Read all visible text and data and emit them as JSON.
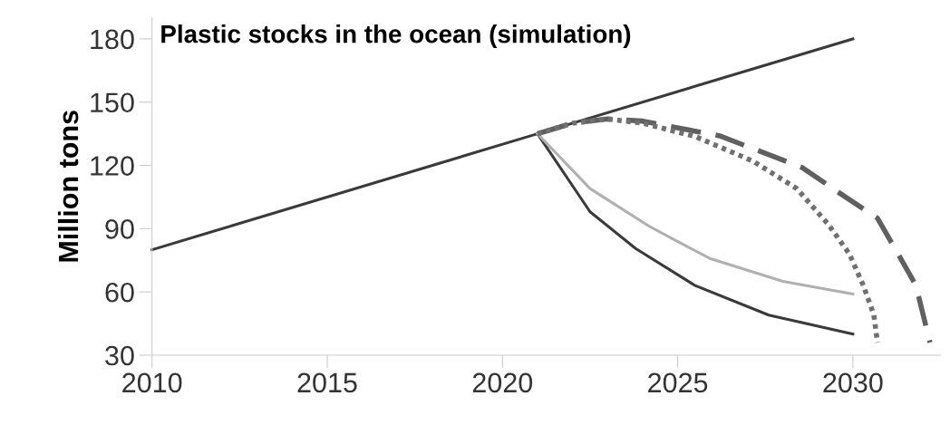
{
  "chart_data": {
    "type": "line",
    "title": "Plastic stocks in the ocean (simulation)",
    "ylabel": "Million tons",
    "xlim": [
      2010,
      2032.5
    ],
    "xticks": [
      2010,
      2015,
      2020,
      2025,
      2030
    ],
    "ylim": [
      30,
      190
    ],
    "yticks": [
      30,
      60,
      90,
      120,
      150,
      180
    ],
    "grid": false,
    "legend": false,
    "series": [
      {
        "color": "#3a3a3a",
        "line_style": "solid",
        "x": [
          2010,
          2021,
          2030
        ],
        "values": [
          80,
          135,
          180
        ]
      },
      {
        "color": "#3a3a3a",
        "line_style": "solid",
        "x": [
          2021,
          2022.5,
          2023.8,
          2025.5,
          2027.6,
          2030
        ],
        "values": [
          135,
          98,
          80.6,
          63,
          49,
          40
        ]
      },
      {
        "color": "#b0b0b0",
        "line_style": "solid",
        "x": [
          2021,
          2022.5,
          2024.2,
          2025.9,
          2028,
          2030
        ],
        "values": [
          135,
          109,
          91,
          76,
          65,
          59
        ]
      },
      {
        "color": "#606060",
        "line_style": "dashed",
        "x": [
          2021,
          2022,
          2023,
          2024,
          2026.2,
          2028.55,
          2029.7,
          2030.7,
          2031.2,
          2031.8,
          2032.2
        ],
        "values": [
          135,
          140,
          142,
          141,
          134,
          119,
          106,
          95,
          80.6,
          63,
          36
        ]
      },
      {
        "color": "#707070",
        "line_style": "dotted",
        "x": [
          2021,
          2022,
          2023,
          2024,
          2025.5,
          2027.15,
          2028.4,
          2029.3,
          2029.9,
          2030.3,
          2030.6,
          2030.7
        ],
        "values": [
          135,
          140,
          142,
          140,
          133.7,
          122,
          109,
          92,
          78,
          63,
          49,
          36
        ]
      }
    ]
  }
}
